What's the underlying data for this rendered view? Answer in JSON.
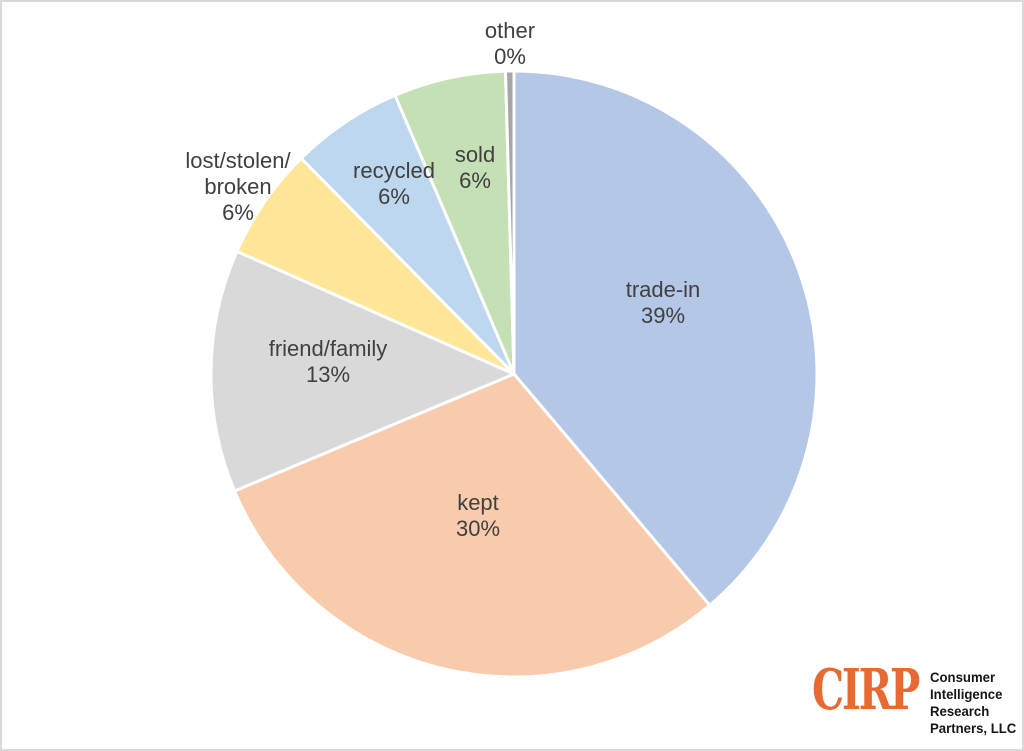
{
  "chart_data": {
    "type": "pie",
    "title": "",
    "unit": "%",
    "order": "clockwise-from-top",
    "legend": "none",
    "slices": [
      {
        "name": "trade-in",
        "value": 39,
        "label": "trade-in\n39%",
        "color": "#B4C7E7"
      },
      {
        "name": "kept",
        "value": 30,
        "label": "kept\n30%",
        "color": "#F8CBAD"
      },
      {
        "name": "friend/family",
        "value": 13,
        "label": "friend/family\n13%",
        "color": "#D9D9D9"
      },
      {
        "name": "lost/stolen/broken",
        "value": 6,
        "label": "lost/stolen/\nbroken\n6%",
        "color": "#FFE699"
      },
      {
        "name": "recycled",
        "value": 6,
        "label": "recycled\n6%",
        "color": "#BDD7EE"
      },
      {
        "name": "sold",
        "value": 6,
        "label": "sold\n6%",
        "color": "#C5E0B4"
      },
      {
        "name": "other",
        "value": 0,
        "label": "other\n0%",
        "color": "#A6A6A6"
      }
    ]
  },
  "logo": {
    "brand": "CIRP",
    "brand_color": "#E76A32",
    "lines": [
      "Consumer",
      "Intelligence",
      "Research",
      "Partners, LLC"
    ]
  },
  "colors": {
    "background": "#ffffff",
    "page_border": "#d9d9d9",
    "label_text": "#404040",
    "slice_separator": "#ffffff"
  }
}
